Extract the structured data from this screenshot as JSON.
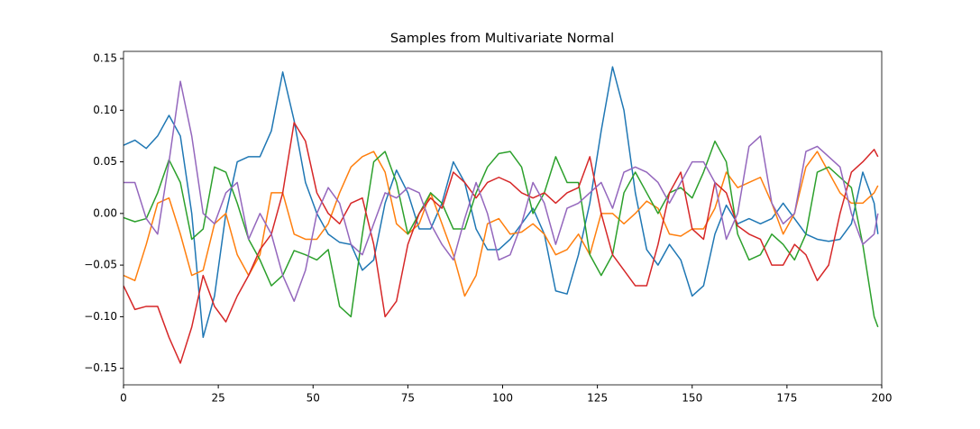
{
  "chart_data": {
    "type": "line",
    "title": "Samples from Multivariate Normal",
    "x": [
      0,
      3,
      6,
      9,
      12,
      15,
      18,
      21,
      24,
      27,
      30,
      33,
      36,
      39,
      42,
      45,
      48,
      51,
      54,
      57,
      60,
      63,
      66,
      69,
      72,
      75,
      78,
      81,
      84,
      87,
      90,
      93,
      96,
      99,
      102,
      105,
      108,
      111,
      114,
      117,
      120,
      123,
      126,
      129,
      132,
      135,
      138,
      141,
      144,
      147,
      150,
      153,
      156,
      159,
      162,
      165,
      168,
      171,
      174,
      177,
      180,
      183,
      186,
      189,
      192,
      195,
      198,
      199
    ],
    "series": [
      {
        "color": "#1f77b4",
        "values": [
          0.066,
          0.071,
          0.063,
          0.075,
          0.095,
          0.075,
          0.0,
          -0.12,
          -0.08,
          0.0,
          0.05,
          0.055,
          0.055,
          0.08,
          0.137,
          0.09,
          0.03,
          0.0,
          -0.02,
          -0.028,
          -0.03,
          -0.055,
          -0.045,
          0.01,
          0.042,
          0.02,
          -0.015,
          -0.015,
          0.01,
          0.05,
          0.03,
          -0.015,
          -0.035,
          -0.035,
          -0.025,
          -0.01,
          0.005,
          -0.02,
          -0.075,
          -0.078,
          -0.04,
          0.01,
          0.08,
          0.142,
          0.1,
          0.02,
          -0.035,
          -0.05,
          -0.03,
          -0.045,
          -0.08,
          -0.07,
          -0.02,
          0.008,
          -0.01,
          -0.005,
          -0.01,
          -0.005,
          0.01,
          -0.005,
          -0.02,
          -0.025,
          -0.027,
          -0.025,
          -0.01,
          0.04,
          0.01,
          -0.02
        ]
      },
      {
        "color": "#ff7f0e",
        "values": [
          -0.06,
          -0.065,
          -0.03,
          0.01,
          0.015,
          -0.02,
          -0.06,
          -0.055,
          -0.01,
          0.0,
          -0.04,
          -0.06,
          -0.04,
          0.02,
          0.02,
          -0.02,
          -0.025,
          -0.025,
          -0.01,
          0.02,
          0.045,
          0.055,
          0.06,
          0.04,
          -0.01,
          -0.02,
          -0.01,
          0.02,
          -0.01,
          -0.04,
          -0.08,
          -0.06,
          -0.01,
          -0.005,
          -0.02,
          -0.018,
          -0.01,
          -0.02,
          -0.04,
          -0.035,
          -0.02,
          -0.04,
          0.0,
          0.0,
          -0.01,
          0.0,
          0.012,
          0.005,
          -0.02,
          -0.022,
          -0.015,
          -0.015,
          0.005,
          0.04,
          0.025,
          0.03,
          0.035,
          0.01,
          -0.02,
          0.0,
          0.045,
          0.06,
          0.04,
          0.02,
          0.01,
          0.01,
          0.02,
          0.027
        ]
      },
      {
        "color": "#2ca02c",
        "values": [
          -0.004,
          -0.008,
          -0.005,
          0.02,
          0.052,
          0.03,
          -0.025,
          -0.015,
          0.045,
          0.04,
          0.01,
          -0.025,
          -0.045,
          -0.07,
          -0.06,
          -0.036,
          -0.04,
          -0.045,
          -0.035,
          -0.09,
          -0.1,
          -0.02,
          0.05,
          0.06,
          0.03,
          -0.02,
          0.0,
          0.02,
          0.01,
          -0.015,
          -0.015,
          0.02,
          0.045,
          0.058,
          0.06,
          0.045,
          0.0,
          0.02,
          0.055,
          0.03,
          0.03,
          -0.04,
          -0.06,
          -0.04,
          0.02,
          0.04,
          0.02,
          0.0,
          0.02,
          0.025,
          0.015,
          0.04,
          0.07,
          0.05,
          -0.02,
          -0.045,
          -0.04,
          -0.02,
          -0.03,
          -0.045,
          -0.02,
          0.04,
          0.045,
          0.035,
          0.025,
          -0.03,
          -0.1,
          -0.11
        ]
      },
      {
        "color": "#d62728",
        "values": [
          -0.07,
          -0.093,
          -0.09,
          -0.09,
          -0.12,
          -0.145,
          -0.11,
          -0.06,
          -0.09,
          -0.105,
          -0.08,
          -0.06,
          -0.035,
          -0.02,
          0.02,
          0.088,
          0.07,
          0.02,
          0.0,
          -0.01,
          0.01,
          0.015,
          -0.03,
          -0.1,
          -0.085,
          -0.03,
          0.0,
          0.015,
          0.005,
          0.04,
          0.03,
          0.015,
          0.03,
          0.035,
          0.03,
          0.02,
          0.015,
          0.02,
          0.01,
          0.02,
          0.025,
          0.055,
          0.0,
          -0.04,
          -0.055,
          -0.07,
          -0.07,
          -0.03,
          0.02,
          0.04,
          -0.015,
          -0.025,
          0.03,
          0.02,
          -0.012,
          -0.02,
          -0.025,
          -0.05,
          -0.05,
          -0.03,
          -0.04,
          -0.065,
          -0.05,
          0.0,
          0.04,
          0.05,
          0.062,
          0.055
        ]
      },
      {
        "color": "#9467bd",
        "values": [
          0.03,
          0.03,
          -0.005,
          -0.02,
          0.05,
          0.128,
          0.075,
          0.0,
          -0.01,
          0.02,
          0.03,
          -0.025,
          0.0,
          -0.02,
          -0.06,
          -0.085,
          -0.055,
          0.0,
          0.025,
          0.01,
          -0.03,
          -0.04,
          -0.01,
          0.02,
          0.015,
          0.025,
          0.02,
          -0.01,
          -0.03,
          -0.045,
          -0.005,
          0.03,
          0.0,
          -0.045,
          -0.04,
          -0.01,
          0.03,
          0.01,
          -0.03,
          0.005,
          0.01,
          0.02,
          0.03,
          0.005,
          0.04,
          0.045,
          0.04,
          0.03,
          0.01,
          0.03,
          0.05,
          0.05,
          0.03,
          -0.025,
          0.0,
          0.065,
          0.075,
          0.01,
          -0.01,
          0.0,
          0.06,
          0.065,
          0.055,
          0.045,
          0.0,
          -0.03,
          -0.02,
          0.0
        ]
      }
    ],
    "xlim": [
      0,
      200
    ],
    "xticks": [
      0,
      25,
      50,
      75,
      100,
      125,
      150,
      175,
      200
    ],
    "ylim": [
      -0.166,
      0.157
    ],
    "yticks": [
      {
        "value": -0.15,
        "label": "−0.15"
      },
      {
        "value": -0.1,
        "label": "−0.10"
      },
      {
        "value": -0.05,
        "label": "−0.05"
      },
      {
        "value": 0,
        "label": "0.00"
      },
      {
        "value": 0.05,
        "label": "0.05"
      },
      {
        "value": 0.1,
        "label": "0.10"
      },
      {
        "value": 0.15,
        "label": "0.15"
      }
    ]
  }
}
